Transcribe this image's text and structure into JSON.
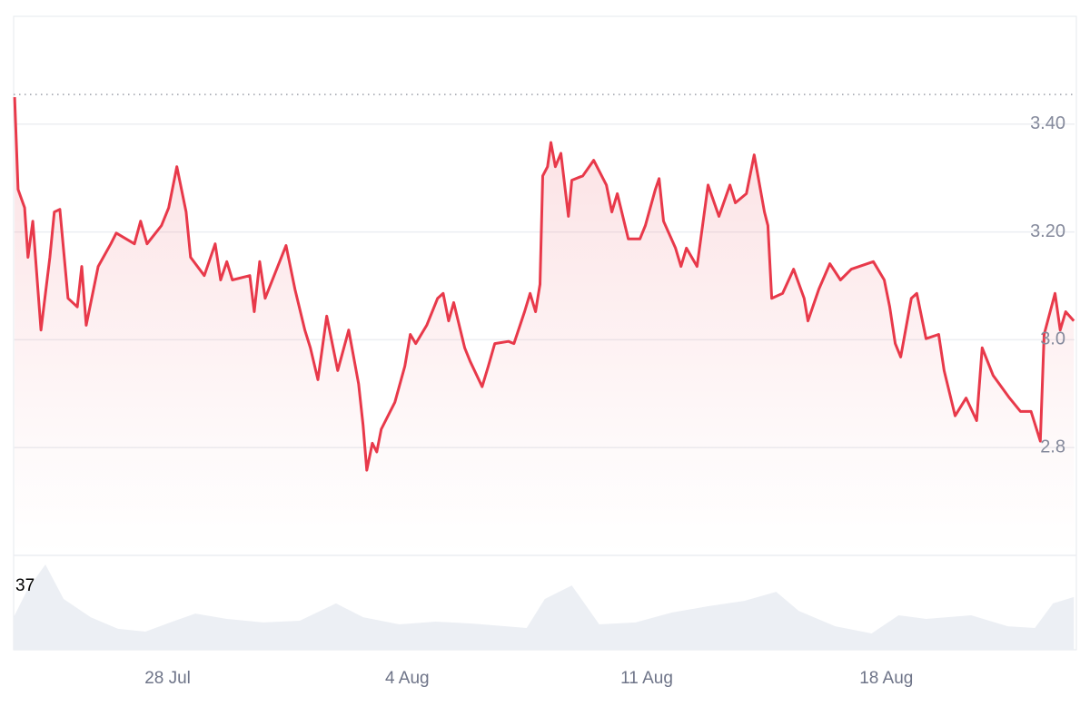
{
  "chart_data": {
    "type": "line",
    "x": [
      23.53,
      23.63,
      23.82,
      23.92,
      24.06,
      24.3,
      24.56,
      24.69,
      24.85,
      25.09,
      25.36,
      25.49,
      25.62,
      25.97,
      26.34,
      26.5,
      27.03,
      27.21,
      27.4,
      27.82,
      28.03,
      28.27,
      28.54,
      28.67,
      29.07,
      29.39,
      29.55,
      29.73,
      29.89,
      30.4,
      30.53,
      30.69,
      30.85,
      31.46,
      31.72,
      32.01,
      32.17,
      32.39,
      32.65,
      32.97,
      33.29,
      33.58,
      33.71,
      33.82,
      33.98,
      34.11,
      34.24,
      34.64,
      34.93,
      35.09,
      35.25,
      35.57,
      35.89,
      36.05,
      36.21,
      36.36,
      36.68,
      36.84,
      37.19,
      37.37,
      37.56,
      37.96,
      38.12,
      38.43,
      38.59,
      38.75,
      38.88,
      38.96,
      39.1,
      39.2,
      39.33,
      39.49,
      39.71,
      39.81,
      40.13,
      40.45,
      40.82,
      40.98,
      41.14,
      41.46,
      41.8,
      41.96,
      42.25,
      42.36,
      42.49,
      42.84,
      43.0,
      43.16,
      43.47,
      43.79,
      44.11,
      44.43,
      44.59,
      44.91,
      45.14,
      45.44,
      45.54,
      45.65,
      45.97,
      46.29,
      46.6,
      46.71,
      47.03,
      47.35,
      47.66,
      47.98,
      48.62,
      48.94,
      49.1,
      49.26,
      49.42,
      49.73,
      49.89,
      50.16,
      50.53,
      50.69,
      51.01,
      51.33,
      51.64,
      51.8,
      52.12,
      52.6,
      52.92,
      53.23,
      53.5,
      53.61,
      53.93,
      54.08,
      54.24,
      54.48
    ],
    "series": [
      {
        "color": "#e8394a",
        "values": [
          3.45,
          3.279,
          3.245,
          3.153,
          3.22,
          3.018,
          3.153,
          3.237,
          3.242,
          3.077,
          3.061,
          3.136,
          3.027,
          3.136,
          3.178,
          3.198,
          3.178,
          3.22,
          3.178,
          3.212,
          3.245,
          3.321,
          3.237,
          3.153,
          3.119,
          3.178,
          3.111,
          3.145,
          3.111,
          3.119,
          3.052,
          3.145,
          3.077,
          3.175,
          3.094,
          3.018,
          2.985,
          2.926,
          3.044,
          2.943,
          3.018,
          2.918,
          2.842,
          2.758,
          2.808,
          2.792,
          2.834,
          2.884,
          2.951,
          3.01,
          2.993,
          3.027,
          3.077,
          3.086,
          3.035,
          3.069,
          2.985,
          2.96,
          2.913,
          2.951,
          2.993,
          2.997,
          2.993,
          3.052,
          3.086,
          3.052,
          3.103,
          3.304,
          3.321,
          3.366,
          3.321,
          3.346,
          3.229,
          3.296,
          3.304,
          3.333,
          3.287,
          3.237,
          3.271,
          3.187,
          3.187,
          3.212,
          3.279,
          3.299,
          3.22,
          3.17,
          3.136,
          3.17,
          3.136,
          3.287,
          3.229,
          3.287,
          3.254,
          3.271,
          3.343,
          3.237,
          3.212,
          3.077,
          3.086,
          3.131,
          3.077,
          3.035,
          3.094,
          3.141,
          3.111,
          3.131,
          3.145,
          3.111,
          3.061,
          2.993,
          2.968,
          3.077,
          3.086,
          3.002,
          3.01,
          2.943,
          2.859,
          2.892,
          2.85,
          2.985,
          2.934,
          2.892,
          2.867,
          2.867,
          2.812,
          3.01,
          3.086,
          3.018,
          3.052,
          3.035
        ]
      }
    ],
    "xlim": [
      23.5,
      54.5
    ],
    "xticks": [
      {
        "value": 28,
        "label": "28 Jul"
      },
      {
        "value": 35,
        "label": "4 Aug"
      },
      {
        "value": 42,
        "label": "11 Aug"
      },
      {
        "value": 49,
        "label": "18 Aug"
      }
    ],
    "ylim": [
      2.6,
      3.6
    ],
    "yticks": [
      {
        "value": 2.8,
        "label": "2.8"
      },
      {
        "value": 3,
        "label": "3.0"
      },
      {
        "value": 3.2,
        "label": "3.20"
      },
      {
        "value": 3.4,
        "label": "3.40"
      }
    ],
    "reference_line": 3.455,
    "grid": true,
    "volume": {
      "type": "area",
      "color": "#eceff4",
      "x": [
        23.5,
        23.9,
        24.43,
        24.96,
        25.75,
        26.55,
        27.35,
        28.14,
        28.81,
        29.73,
        30.79,
        31.86,
        32.92,
        33.71,
        34.77,
        35.83,
        36.9,
        38.49,
        39.02,
        39.81,
        40.61,
        41.67,
        42.73,
        43.79,
        44.85,
        45.78,
        46.44,
        47.51,
        48.57,
        49.36,
        50.16,
        51.48,
        52.55,
        53.34,
        53.87,
        54.48
      ],
      "values": [
        19.0,
        34.9,
        49.7,
        29.6,
        19.0,
        12.2,
        10.6,
        16.4,
        21.1,
        18.0,
        15.9,
        16.9,
        27.0,
        19.0,
        14.8,
        16.4,
        15.3,
        12.7,
        29.6,
        37.5,
        14.8,
        15.9,
        21.7,
        25.4,
        28.5,
        33.8,
        22.7,
        13.7,
        9.5,
        20.1,
        18.0,
        20.1,
        13.7,
        12.7,
        27.0,
        30.7
      ],
      "ylim": [
        0,
        55
      ],
      "yticks": [
        37
      ]
    }
  }
}
